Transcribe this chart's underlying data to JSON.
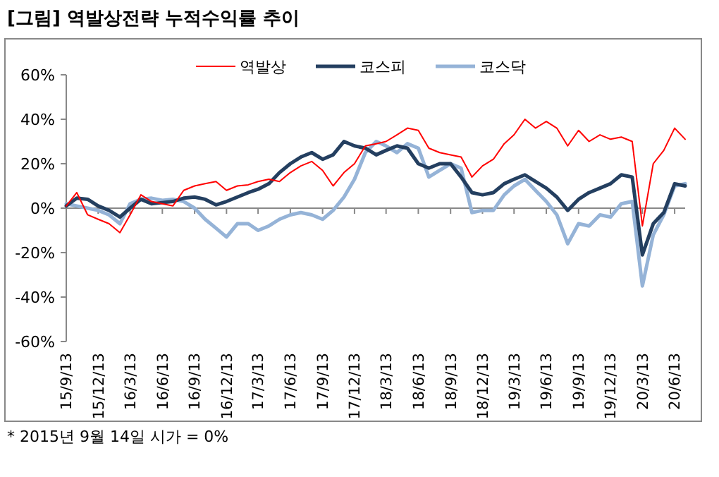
{
  "chart_data": {
    "type": "line",
    "title": "[그림] 역발상전략 누적수익률 추이",
    "x": [
      "2015-09-13",
      "2015-10-13",
      "2015-11-13",
      "2015-12-13",
      "2016-01-13",
      "2016-02-13",
      "2016-03-13",
      "2016-04-13",
      "2016-05-13",
      "2016-06-13",
      "2016-07-13",
      "2016-08-13",
      "2016-09-13",
      "2016-10-13",
      "2016-11-13",
      "2016-12-13",
      "2017-01-13",
      "2017-02-13",
      "2017-03-13",
      "2017-04-13",
      "2017-05-13",
      "2017-06-13",
      "2017-07-13",
      "2017-08-13",
      "2017-09-13",
      "2017-10-13",
      "2017-11-13",
      "2017-12-13",
      "2018-01-13",
      "2018-02-13",
      "2018-03-13",
      "2018-04-13",
      "2018-05-13",
      "2018-06-13",
      "2018-07-13",
      "2018-08-13",
      "2018-09-13",
      "2018-10-13",
      "2018-11-13",
      "2018-12-13",
      "2019-01-13",
      "2019-02-13",
      "2019-03-13",
      "2019-04-13",
      "2019-05-13",
      "2019-06-13",
      "2019-07-13",
      "2019-08-13",
      "2019-09-13",
      "2019-10-13",
      "2019-11-13",
      "2019-12-13",
      "2020-01-13",
      "2020-02-13",
      "2020-03-13",
      "2020-04-13",
      "2020-05-13",
      "2020-06-13",
      "2020-07-13"
    ],
    "series": [
      {
        "name": "역발상",
        "color": "#ff0000",
        "values": [
          1,
          7,
          -3,
          -5,
          -7,
          -11,
          -3,
          6,
          3,
          2,
          1,
          8,
          10,
          11,
          12,
          8,
          10,
          10.5,
          12,
          13,
          12,
          16,
          19,
          21,
          17,
          10,
          16,
          20,
          28,
          29,
          30,
          33,
          36,
          35,
          27,
          25,
          24,
          23,
          14,
          19,
          22,
          29,
          33,
          40,
          36,
          39,
          36,
          28,
          35,
          30,
          33,
          31,
          32,
          30,
          -8,
          20,
          26,
          36,
          31
        ]
      },
      {
        "name": "코스피",
        "color": "#243f60",
        "values": [
          1,
          4.5,
          4,
          1,
          -1,
          -4,
          0,
          4,
          2,
          2.5,
          3,
          4.5,
          5,
          4,
          1.5,
          3,
          5,
          7,
          8.5,
          11,
          16,
          20,
          23,
          25,
          22,
          24,
          30,
          28,
          27,
          24,
          26,
          28,
          27,
          20,
          18,
          20,
          20,
          14,
          7,
          6,
          7,
          11,
          13,
          15,
          12,
          9,
          5,
          -1,
          4,
          7,
          9,
          11,
          15,
          14,
          -21,
          -7,
          -2,
          11,
          10
        ]
      },
      {
        "name": "코스닥",
        "color": "#95b3d7",
        "values": [
          2,
          1,
          0,
          -1,
          -3,
          -7,
          2,
          4,
          4.5,
          3.5,
          4,
          3,
          0,
          -5,
          -9,
          -13,
          -7,
          -7,
          -10,
          -8,
          -5,
          -3,
          -2,
          -3,
          -5,
          -1,
          5,
          13,
          25,
          30,
          28,
          25,
          29,
          27,
          14,
          17,
          20,
          18,
          -2,
          -1,
          -1,
          6,
          10,
          13,
          8,
          3,
          -3,
          -16,
          -7,
          -8,
          -3,
          -4,
          2,
          3,
          -35,
          -12,
          -3,
          10,
          11
        ]
      }
    ],
    "xlim": [
      "2015-09-13",
      "2020-07-13"
    ],
    "xticks": [
      {
        "value": "2015-09-13",
        "label": "15/9/13"
      },
      {
        "value": "2015-12-13",
        "label": "15/12/13"
      },
      {
        "value": "2016-03-13",
        "label": "16/3/13"
      },
      {
        "value": "2016-06-13",
        "label": "16/6/13"
      },
      {
        "value": "2016-09-13",
        "label": "16/9/13"
      },
      {
        "value": "2016-12-13",
        "label": "16/12/13"
      },
      {
        "value": "2017-03-13",
        "label": "17/3/13"
      },
      {
        "value": "2017-06-13",
        "label": "17/6/13"
      },
      {
        "value": "2017-09-13",
        "label": "17/9/13"
      },
      {
        "value": "2017-12-13",
        "label": "17/12/13"
      },
      {
        "value": "2018-03-13",
        "label": "18/3/13"
      },
      {
        "value": "2018-06-13",
        "label": "18/6/13"
      },
      {
        "value": "2018-09-13",
        "label": "18/9/13"
      },
      {
        "value": "2018-12-13",
        "label": "18/12/13"
      },
      {
        "value": "2019-03-13",
        "label": "19/3/13"
      },
      {
        "value": "2019-06-13",
        "label": "19/6/13"
      },
      {
        "value": "2019-09-13",
        "label": "19/9/13"
      },
      {
        "value": "2019-12-13",
        "label": "19/12/13"
      },
      {
        "value": "2020-03-13",
        "label": "20/3/13"
      },
      {
        "value": "2020-06-13",
        "label": "20/6/13"
      }
    ],
    "ylim": [
      -60,
      60
    ],
    "yticks": [
      {
        "value": -60,
        "label": "-60%"
      },
      {
        "value": -40,
        "label": "-40%"
      },
      {
        "value": -20,
        "label": "-20%"
      },
      {
        "value": 0,
        "label": "0%"
      },
      {
        "value": 20,
        "label": "20%"
      },
      {
        "value": 40,
        "label": "40%"
      },
      {
        "value": 60,
        "label": "60%"
      }
    ],
    "legend": "top",
    "marker": "none",
    "line_style": "solid",
    "annotations": [
      "* 2015년 9월 14일 시가 = 0%"
    ]
  }
}
